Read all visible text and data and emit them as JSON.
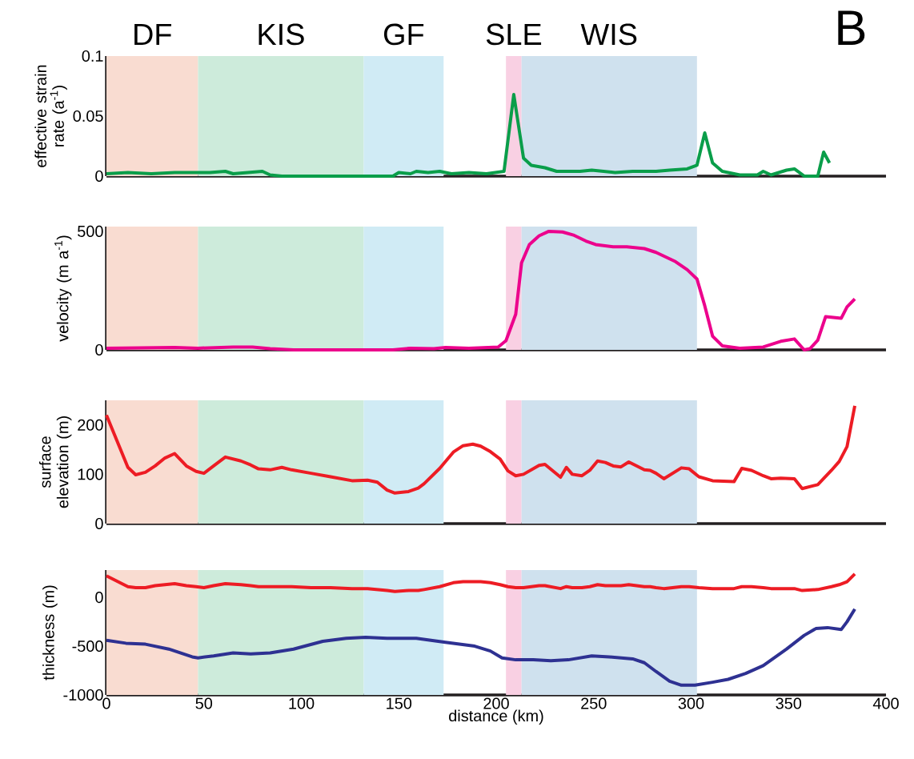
{
  "chart_data": [
    {
      "type": "line",
      "ylabel": "effective strain rate (a$^{-1}$)",
      "annotations": [
        "B"
      ],
      "tick_labels": "y",
      "xlim": [
        0,
        400
      ],
      "ylim": [
        0,
        0.1
      ],
      "yticks": [
        0,
        0.05,
        0.1
      ],
      "x": [
        0,
        11,
        23,
        35,
        47,
        53,
        61,
        65,
        80,
        84,
        90,
        147,
        150,
        156,
        159,
        165,
        171,
        177,
        186,
        195,
        204,
        209,
        214,
        218,
        225,
        231,
        243,
        249,
        261,
        270,
        282,
        289,
        298,
        303,
        307,
        311,
        316,
        325,
        334,
        337,
        341,
        349,
        353,
        358,
        365,
        368,
        371
      ],
      "series": [
        {
          "color": "#0a9e4a",
          "values": [
            0.002,
            0.003,
            0.002,
            0.003,
            0.003,
            0.003,
            0.004,
            0.002,
            0.004,
            0.001,
            0,
            0,
            0.003,
            0.002,
            0.004,
            0.003,
            0.004,
            0.002,
            0.003,
            0.002,
            0.004,
            0.068,
            0.015,
            0.009,
            0.007,
            0.004,
            0.004,
            0.005,
            0.003,
            0.004,
            0.004,
            0.005,
            0.006,
            0.009,
            0.036,
            0.011,
            0.004,
            0.001,
            0.001,
            0.004,
            0.001,
            0.005,
            0.006,
            0,
            0,
            0.02,
            0.011
          ]
        }
      ],
      "bands": [
        {
          "axis": "x",
          "from": 0,
          "to": 47,
          "label": "DF",
          "color": "#f9dcd1"
        },
        {
          "axis": "x",
          "from": 47,
          "to": 132,
          "label": "KIS",
          "color": "#cdebdb"
        },
        {
          "axis": "x",
          "from": 132,
          "to": 173,
          "label": "GF",
          "color": "#d0ebf5"
        },
        {
          "axis": "x",
          "from": 205,
          "to": 213,
          "label": "SLE",
          "color": "#f9d0e3"
        },
        {
          "axis": "x",
          "from": 213,
          "to": 303,
          "label": "WIS",
          "color": "#cfe1ee"
        }
      ]
    },
    {
      "type": "line",
      "ylabel": "velocity (m a$^{-1}$)",
      "tick_labels": "y",
      "xlim": [
        0,
        400
      ],
      "ylim": [
        0,
        520
      ],
      "yticks": [
        0,
        500
      ],
      "x": [
        0,
        35,
        47,
        65,
        75,
        84,
        96,
        126,
        147,
        156,
        168,
        174,
        186,
        201,
        205,
        210,
        213,
        217,
        222,
        227,
        234,
        240,
        246,
        251,
        260,
        267,
        276,
        282,
        292,
        298,
        303,
        307,
        311,
        316,
        325,
        337,
        346,
        353,
        358,
        361,
        365,
        369,
        377,
        380,
        384
      ],
      "series": [
        {
          "color": "#ec008c",
          "values": [
            7,
            10,
            7,
            12,
            12,
            5,
            0,
            0,
            0,
            7,
            5,
            10,
            7,
            12,
            39,
            150,
            367,
            444,
            481,
            500,
            497,
            483,
            459,
            444,
            435,
            435,
            427,
            411,
            372,
            338,
            299,
            186,
            58,
            17,
            7,
            12,
            36,
            46,
            0,
            5,
            41,
            140,
            133,
            181,
            215
          ]
        }
      ],
      "bands": [
        {
          "axis": "x",
          "from": 0,
          "to": 47,
          "color": "#f9dcd1"
        },
        {
          "axis": "x",
          "from": 47,
          "to": 132,
          "color": "#cdebdb"
        },
        {
          "axis": "x",
          "from": 132,
          "to": 173,
          "color": "#d0ebf5"
        },
        {
          "axis": "x",
          "from": 205,
          "to": 213,
          "color": "#f9d0e3"
        },
        {
          "axis": "x",
          "from": 213,
          "to": 303,
          "color": "#cfe1ee"
        }
      ]
    },
    {
      "type": "line",
      "ylabel": "surface elevation (m)",
      "tick_labels": "y",
      "xlim": [
        0,
        400
      ],
      "ylim": [
        0,
        250
      ],
      "yticks": [
        0,
        100,
        200
      ],
      "x": [
        0,
        11,
        15,
        20,
        25,
        30,
        35,
        41,
        46,
        50,
        55,
        61,
        69,
        74,
        78,
        84,
        90,
        95,
        105,
        115,
        126,
        134,
        139,
        144,
        148,
        155,
        160,
        163,
        171,
        178,
        183,
        188,
        192,
        197,
        202,
        206,
        210,
        214,
        222,
        225,
        233,
        236,
        239,
        244,
        248,
        252,
        256,
        260,
        264,
        268,
        276,
        279,
        282,
        286,
        295,
        299,
        304,
        311,
        322,
        326,
        331,
        337,
        341,
        346,
        353,
        357,
        365,
        372,
        376,
        380,
        384
      ],
      "series": [
        {
          "color": "#ed1c24",
          "values": [
            220,
            114,
            99,
            104,
            117,
            133,
            142,
            117,
            106,
            102,
            117,
            135,
            127,
            119,
            111,
            109,
            114,
            109,
            102,
            95,
            87,
            88,
            84,
            68,
            62,
            65,
            72,
            81,
            112,
            145,
            158,
            161,
            157,
            146,
            131,
            107,
            97,
            100,
            118,
            120,
            94,
            114,
            100,
            97,
            108,
            127,
            124,
            117,
            115,
            125,
            109,
            108,
            102,
            91,
            113,
            111,
            95,
            87,
            85,
            112,
            108,
            97,
            91,
            92,
            91,
            71,
            79,
            108,
            126,
            156,
            239
          ]
        }
      ],
      "bands": [
        {
          "axis": "x",
          "from": 0,
          "to": 47,
          "color": "#f9dcd1"
        },
        {
          "axis": "x",
          "from": 47,
          "to": 132,
          "color": "#cdebdb"
        },
        {
          "axis": "x",
          "from": 132,
          "to": 173,
          "color": "#d0ebf5"
        },
        {
          "axis": "x",
          "from": 205,
          "to": 213,
          "color": "#f9d0e3"
        },
        {
          "axis": "x",
          "from": 213,
          "to": 303,
          "color": "#cfe1ee"
        }
      ]
    },
    {
      "type": "line",
      "ylabel": "thickness (m)",
      "xlabel": "distance (km)",
      "xlim": [
        0,
        400
      ],
      "ylim": [
        -1000,
        280
      ],
      "xticks": [
        0,
        50,
        100,
        150,
        200,
        250,
        300,
        350,
        400
      ],
      "yticks": [
        -1000,
        -500,
        0
      ],
      "series": [
        {
          "color": "#ed1c24",
          "x": [
            0,
            11,
            15,
            20,
            25,
            30,
            35,
            41,
            46,
            50,
            55,
            61,
            69,
            74,
            78,
            84,
            90,
            95,
            105,
            115,
            126,
            134,
            139,
            144,
            148,
            155,
            160,
            163,
            171,
            178,
            183,
            188,
            192,
            197,
            202,
            206,
            210,
            214,
            222,
            225,
            233,
            236,
            239,
            244,
            248,
            252,
            256,
            260,
            264,
            268,
            276,
            279,
            282,
            286,
            295,
            299,
            304,
            311,
            322,
            326,
            331,
            337,
            341,
            346,
            353,
            357,
            365,
            372,
            376,
            380,
            384
          ],
          "values": [
            220,
            110,
            100,
            100,
            120,
            130,
            140,
            120,
            110,
            100,
            120,
            140,
            130,
            120,
            110,
            110,
            110,
            110,
            100,
            100,
            90,
            90,
            80,
            70,
            60,
            70,
            70,
            80,
            110,
            150,
            160,
            160,
            160,
            150,
            130,
            110,
            100,
            100,
            120,
            120,
            90,
            110,
            100,
            100,
            110,
            130,
            120,
            120,
            120,
            130,
            110,
            110,
            100,
            90,
            110,
            110,
            100,
            90,
            90,
            110,
            110,
            100,
            90,
            90,
            90,
            70,
            80,
            110,
            130,
            160,
            240
          ]
        },
        {
          "color": "#2e3192",
          "x": [
            0,
            10,
            20,
            32,
            44,
            47,
            55,
            65,
            74,
            84,
            96,
            111,
            123,
            133,
            144,
            159,
            174,
            189,
            197,
            203,
            210,
            219,
            228,
            237,
            249,
            258,
            270,
            276,
            282,
            289,
            295,
            302,
            311,
            319,
            328,
            337,
            349,
            358,
            364,
            370,
            377,
            380,
            384
          ],
          "values": [
            -440,
            -470,
            -480,
            -530,
            -610,
            -620,
            -600,
            -570,
            -580,
            -570,
            -530,
            -450,
            -420,
            -410,
            -420,
            -420,
            -460,
            -500,
            -550,
            -620,
            -640,
            -640,
            -650,
            -640,
            -600,
            -610,
            -630,
            -670,
            -760,
            -860,
            -900,
            -900,
            -870,
            -840,
            -780,
            -700,
            -530,
            -390,
            -320,
            -310,
            -330,
            -250,
            -120
          ]
        }
      ],
      "bands": [
        {
          "axis": "x",
          "from": 0,
          "to": 47,
          "color": "#f9dcd1"
        },
        {
          "axis": "x",
          "from": 47,
          "to": 132,
          "color": "#cdebdb"
        },
        {
          "axis": "x",
          "from": 132,
          "to": 173,
          "color": "#d0ebf5"
        },
        {
          "axis": "x",
          "from": 205,
          "to": 213,
          "color": "#f9d0e3"
        },
        {
          "axis": "x",
          "from": 213,
          "to": 303,
          "color": "#cfe1ee"
        }
      ]
    }
  ]
}
